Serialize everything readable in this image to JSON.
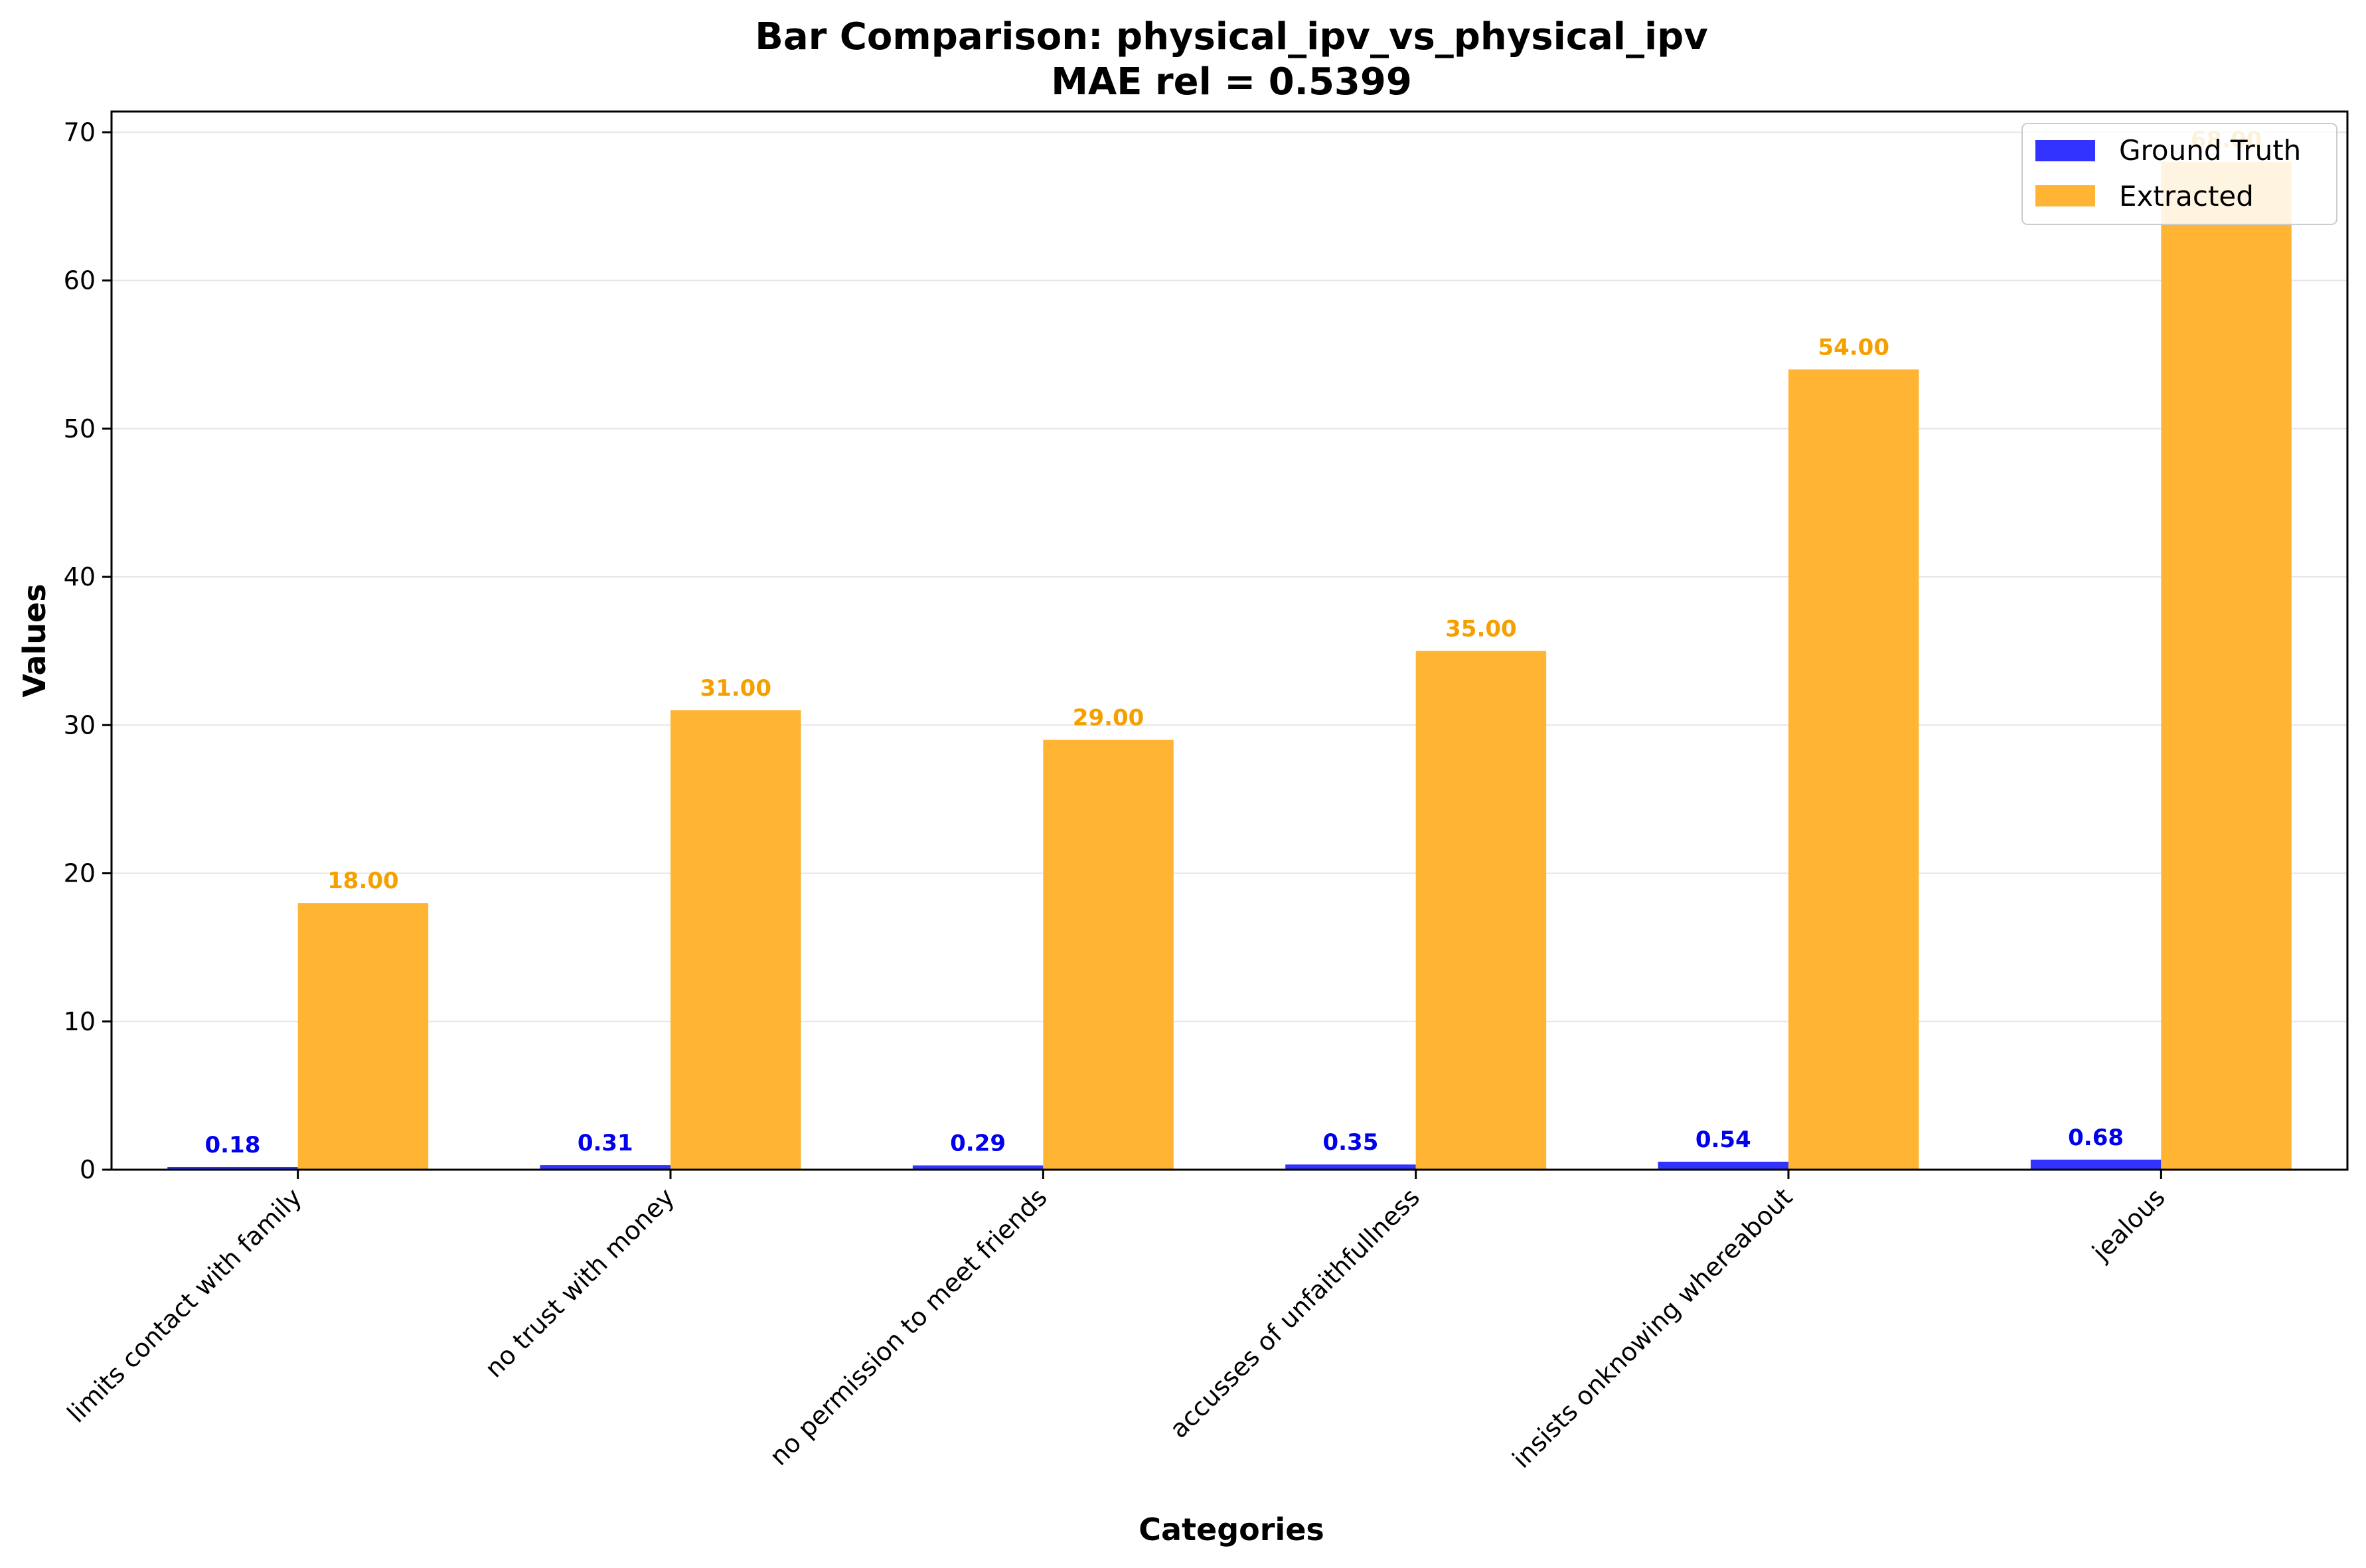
{
  "chart_data": {
    "type": "bar",
    "title": "Bar Comparison: physical_ipv_vs_physical_ipv",
    "subtitle": "MAE rel = 0.5399",
    "xlabel": "Categories",
    "ylabel": "Values",
    "ylim": [
      0,
      71.4
    ],
    "yticks": [
      0,
      10,
      20,
      30,
      40,
      50,
      60,
      70
    ],
    "grid": "y",
    "legend_position": "top-right",
    "categories": [
      "limits contact with family",
      "no trust with money",
      "no permission to meet friends",
      "accusses of unfaithfullness",
      "insists onknowing whereabout",
      "jealous"
    ],
    "series": [
      {
        "name": "Ground Truth",
        "color": "#3333ff",
        "label_color": "#0000ee",
        "values": [
          0.18,
          0.31,
          0.29,
          0.35,
          0.54,
          0.68
        ],
        "labels": [
          "0.18",
          "0.31",
          "0.29",
          "0.35",
          "0.54",
          "0.68"
        ]
      },
      {
        "name": "Extracted",
        "color": "#ffb533",
        "label_color": "#f5a000",
        "values": [
          18,
          31,
          29,
          35,
          54,
          68
        ],
        "labels": [
          "18.00",
          "31.00",
          "29.00",
          "35.00",
          "54.00",
          "68.00"
        ]
      }
    ]
  }
}
